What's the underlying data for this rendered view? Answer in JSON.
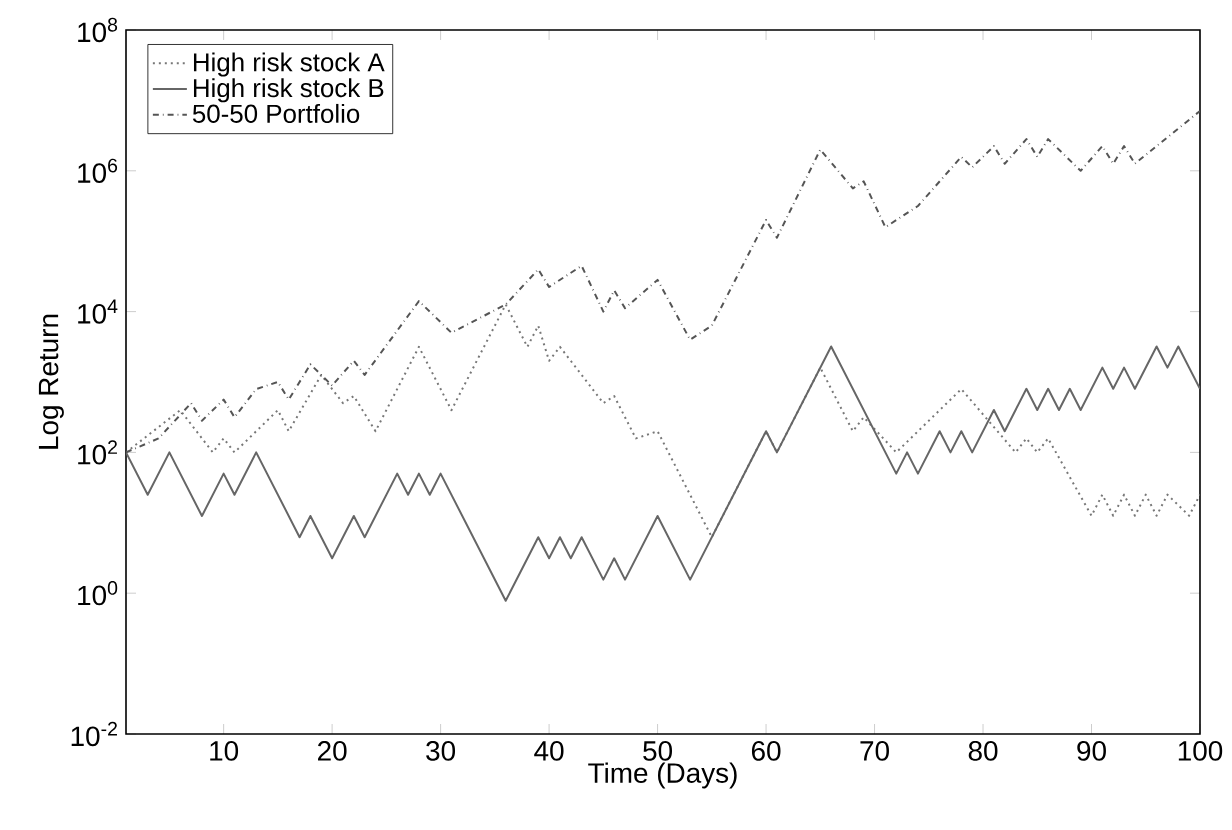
{
  "chart_data": {
    "type": "line",
    "xlabel": "Time (Days)",
    "ylabel": "Log Return",
    "log": "y",
    "legend": "top left",
    "grid": false,
    "xlim": [
      1,
      100
    ],
    "xticks": [
      10,
      20,
      30,
      40,
      50,
      60,
      70,
      80,
      90,
      100
    ],
    "ylim": [
      0.01,
      100000000
    ],
    "yticks": [
      {
        "value": 0.01,
        "label": "10$^{-2}$"
      },
      {
        "value": 1,
        "label": "10$^{0}$"
      },
      {
        "value": 100,
        "label": "10$^{2}$"
      },
      {
        "value": 10000,
        "label": "10$^{4}$"
      },
      {
        "value": 1000000,
        "label": "10$^{6}$"
      },
      {
        "value": 100000000,
        "label": "10$^{8}$"
      }
    ],
    "series": [
      {
        "name": "High risk stock A",
        "color": "#777777",
        "line_style": "dotted",
        "x": [
          1,
          6,
          9,
          10,
          11,
          15,
          16,
          19,
          21,
          22,
          24,
          28,
          31,
          36,
          38,
          39,
          40,
          41,
          45,
          46,
          48,
          50,
          55,
          60,
          61,
          65,
          68,
          69,
          72,
          78,
          83,
          84,
          85,
          86,
          90,
          91,
          92,
          93,
          94,
          95,
          96,
          97,
          99,
          100
        ],
        "values": [
          100,
          398,
          100,
          158,
          100,
          398,
          200,
          1260,
          501,
          631,
          200,
          3160,
          398,
          12600,
          3160,
          6310,
          2000,
          3160,
          501,
          631,
          158,
          200,
          6.25,
          200,
          100,
          1600,
          200,
          316,
          100,
          794,
          100,
          158,
          100,
          158,
          12.6,
          25.1,
          12.6,
          25.1,
          12.6,
          25.1,
          12.6,
          25.1,
          12.6,
          25.1
        ]
      },
      {
        "name": "High risk stock B",
        "color": "#666666",
        "line_style": "solid",
        "x": [
          1,
          3,
          5,
          8,
          10,
          11,
          13,
          17,
          18,
          20,
          22,
          23,
          26,
          27,
          28,
          29,
          30,
          36,
          39,
          40,
          41,
          42,
          43,
          45,
          46,
          47,
          50,
          53,
          60,
          61,
          66,
          72,
          73,
          74,
          76,
          77,
          78,
          79,
          81,
          82,
          84,
          85,
          86,
          87,
          88,
          89,
          91,
          92,
          93,
          94,
          96,
          97,
          98,
          100
        ],
        "values": [
          100,
          25,
          100,
          12.5,
          50,
          25,
          100,
          6.25,
          12.5,
          3.13,
          12.5,
          6.25,
          50,
          25,
          50,
          25,
          50,
          0.781,
          6.25,
          3.13,
          6.25,
          3.13,
          6.25,
          1.56,
          3.13,
          1.56,
          12.5,
          1.56,
          200,
          100,
          3200,
          50,
          100,
          50,
          200,
          100,
          200,
          100,
          400,
          200,
          800,
          400,
          800,
          400,
          800,
          400,
          1600,
          800,
          1600,
          800,
          3200,
          1600,
          3200,
          800
        ]
      },
      {
        "name": "50-50 Portfolio",
        "color": "#555555",
        "line_style": "dashdot",
        "x": [
          1,
          4,
          7,
          8,
          10,
          11,
          13,
          15,
          16,
          18,
          20,
          22,
          23,
          28,
          31,
          36,
          39,
          40,
          43,
          45,
          46,
          47,
          50,
          53,
          55,
          60,
          61,
          65,
          68,
          69,
          71,
          74,
          78,
          79,
          81,
          82,
          84,
          85,
          86,
          89,
          91,
          92,
          93,
          94,
          100
        ],
        "values": [
          100,
          158,
          501,
          282,
          562,
          316,
          794,
          1000,
          562,
          1780,
          891,
          2000,
          1260,
          14100,
          5010,
          12600,
          39800,
          22400,
          44700,
          10000,
          20000,
          11200,
          28200,
          3980,
          6310,
          200000,
          112000,
          2000000,
          562000,
          708000,
          158000,
          316000,
          1580000,
          1120000,
          2240000,
          1260000,
          2820000,
          1580000,
          2820000,
          1000000,
          2240000,
          1260000,
          2240000,
          1260000,
          7080000
        ]
      }
    ]
  }
}
